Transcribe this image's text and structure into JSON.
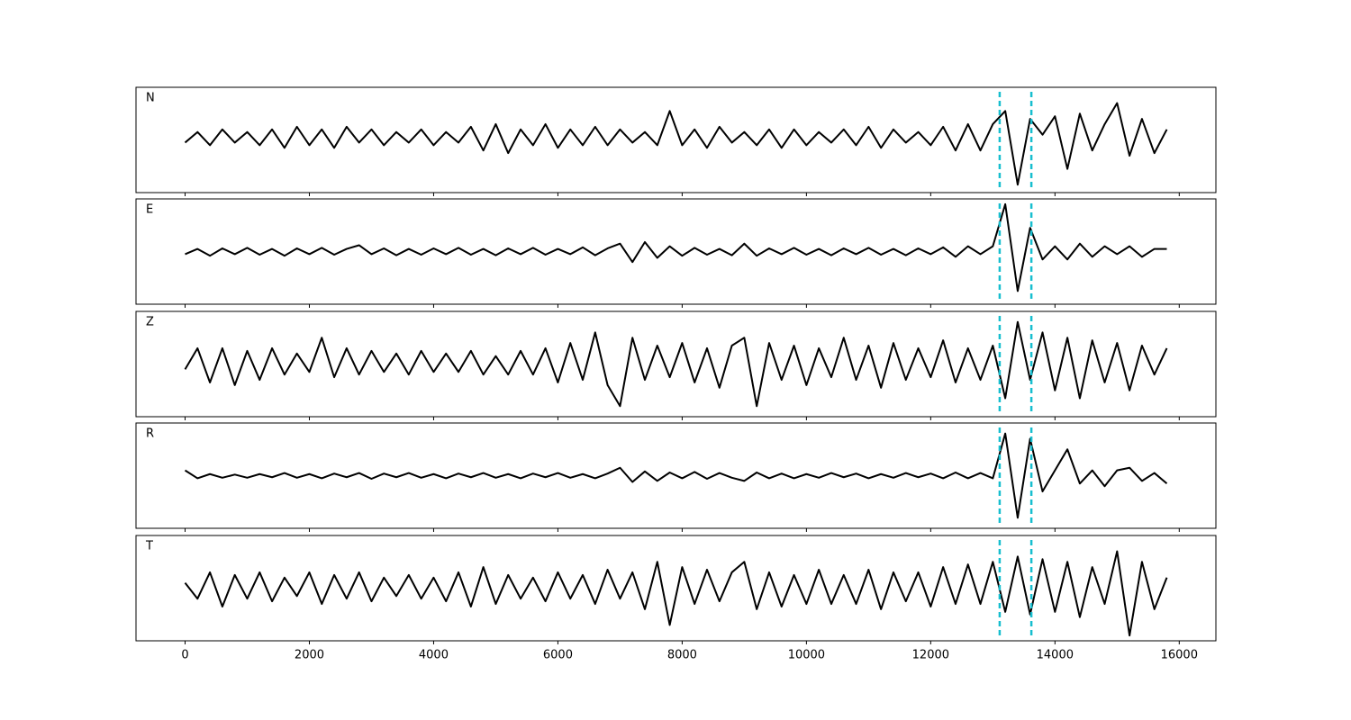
{
  "chart_data": {
    "type": "line",
    "x": [
      0,
      200,
      400,
      600,
      800,
      1000,
      1200,
      1400,
      1600,
      1800,
      2000,
      2200,
      2400,
      2600,
      2800,
      3000,
      3200,
      3400,
      3600,
      3800,
      4000,
      4200,
      4400,
      4600,
      4800,
      5000,
      5200,
      5400,
      5600,
      5800,
      6000,
      6200,
      6400,
      6600,
      6800,
      7000,
      7200,
      7400,
      7600,
      7800,
      8000,
      8200,
      8400,
      8600,
      8800,
      9000,
      9200,
      9400,
      9600,
      9800,
      10000,
      10200,
      10400,
      10600,
      10800,
      11000,
      11200,
      11400,
      11600,
      11800,
      12000,
      12200,
      12400,
      12600,
      12800,
      13000,
      13200,
      13400,
      13600,
      13800,
      14000,
      14200,
      14400,
      14600,
      14800,
      15000,
      15200,
      15400,
      15600,
      15800
    ],
    "series": [
      {
        "name": "N",
        "color": "#000000",
        "values": [
          -0.05,
          0.15,
          -0.1,
          0.2,
          -0.05,
          0.15,
          -0.1,
          0.2,
          -0.15,
          0.25,
          -0.1,
          0.2,
          -0.15,
          0.25,
          -0.05,
          0.2,
          -0.1,
          0.15,
          -0.05,
          0.2,
          -0.1,
          0.15,
          -0.05,
          0.25,
          -0.2,
          0.3,
          -0.25,
          0.2,
          -0.1,
          0.3,
          -0.15,
          0.2,
          -0.1,
          0.25,
          -0.1,
          0.2,
          -0.05,
          0.15,
          -0.1,
          0.55,
          -0.1,
          0.2,
          -0.15,
          0.25,
          -0.05,
          0.15,
          -0.1,
          0.2,
          -0.15,
          0.2,
          -0.1,
          0.15,
          -0.05,
          0.2,
          -0.1,
          0.25,
          -0.15,
          0.2,
          -0.05,
          0.15,
          -0.1,
          0.25,
          -0.2,
          0.3,
          -0.2,
          0.3,
          0.55,
          -0.85,
          0.4,
          0.1,
          0.45,
          -0.55,
          0.5,
          -0.2,
          0.3,
          0.7,
          -0.3,
          0.4,
          -0.25,
          0.2
        ]
      },
      {
        "name": "E",
        "color": "#000000",
        "values": [
          -0.05,
          0.05,
          -0.08,
          0.06,
          -0.05,
          0.07,
          -0.06,
          0.05,
          -0.08,
          0.06,
          -0.05,
          0.07,
          -0.06,
          0.05,
          0.12,
          -0.05,
          0.06,
          -0.07,
          0.05,
          -0.06,
          0.06,
          -0.05,
          0.07,
          -0.06,
          0.05,
          -0.07,
          0.06,
          -0.05,
          0.07,
          -0.06,
          0.05,
          -0.05,
          0.08,
          -0.07,
          0.06,
          0.15,
          -0.2,
          0.18,
          -0.12,
          0.1,
          -0.08,
          0.07,
          -0.06,
          0.05,
          -0.07,
          0.15,
          -0.08,
          0.06,
          -0.05,
          0.07,
          -0.06,
          0.05,
          -0.07,
          0.06,
          -0.05,
          0.07,
          -0.06,
          0.05,
          -0.07,
          0.06,
          -0.05,
          0.08,
          -0.1,
          0.1,
          -0.05,
          0.1,
          0.9,
          -0.75,
          0.45,
          -0.15,
          0.1,
          -0.15,
          0.15,
          -0.1,
          0.1,
          -0.05,
          0.1,
          -0.1,
          0.05,
          0.05
        ]
      },
      {
        "name": "Z",
        "color": "#000000",
        "values": [
          -0.1,
          0.3,
          -0.35,
          0.3,
          -0.4,
          0.25,
          -0.3,
          0.3,
          -0.2,
          0.2,
          -0.15,
          0.5,
          -0.25,
          0.3,
          -0.2,
          0.25,
          -0.15,
          0.2,
          -0.2,
          0.25,
          -0.15,
          0.2,
          -0.15,
          0.25,
          -0.2,
          0.15,
          -0.2,
          0.25,
          -0.2,
          0.3,
          -0.35,
          0.4,
          -0.3,
          0.6,
          -0.4,
          -0.8,
          0.5,
          -0.3,
          0.35,
          -0.25,
          0.4,
          -0.35,
          0.3,
          -0.45,
          0.35,
          0.5,
          -0.8,
          0.4,
          -0.3,
          0.35,
          -0.4,
          0.3,
          -0.25,
          0.5,
          -0.3,
          0.35,
          -0.45,
          0.4,
          -0.3,
          0.3,
          -0.25,
          0.45,
          -0.35,
          0.3,
          -0.3,
          0.35,
          -0.65,
          0.8,
          -0.3,
          0.6,
          -0.5,
          0.5,
          -0.65,
          0.45,
          -0.35,
          0.4,
          -0.5,
          0.35,
          -0.2,
          0.3
        ]
      },
      {
        "name": "R",
        "color": "#000000",
        "values": [
          0.1,
          -0.05,
          0.03,
          -0.04,
          0.02,
          -0.04,
          0.03,
          -0.03,
          0.05,
          -0.04,
          0.03,
          -0.05,
          0.04,
          -0.03,
          0.05,
          -0.06,
          0.04,
          -0.03,
          0.05,
          -0.04,
          0.03,
          -0.05,
          0.04,
          -0.03,
          0.05,
          -0.04,
          0.03,
          -0.05,
          0.04,
          -0.03,
          0.05,
          -0.04,
          0.03,
          -0.05,
          0.04,
          0.15,
          -0.12,
          0.08,
          -0.1,
          0.06,
          -0.05,
          0.07,
          -0.06,
          0.05,
          -0.04,
          -0.1,
          0.06,
          -0.05,
          0.04,
          -0.05,
          0.03,
          -0.04,
          0.05,
          -0.03,
          0.04,
          -0.05,
          0.03,
          -0.04,
          0.05,
          -0.03,
          0.04,
          -0.05,
          0.06,
          -0.05,
          0.05,
          -0.05,
          0.8,
          -0.8,
          0.7,
          -0.3,
          0.1,
          0.5,
          -0.15,
          0.1,
          -0.2,
          0.1,
          0.15,
          -0.1,
          0.05,
          -0.15
        ]
      },
      {
        "name": "T",
        "color": "#000000",
        "values": [
          0.1,
          -0.2,
          0.3,
          -0.35,
          0.25,
          -0.2,
          0.3,
          -0.25,
          0.2,
          -0.15,
          0.3,
          -0.3,
          0.25,
          -0.2,
          0.3,
          -0.25,
          0.2,
          -0.15,
          0.25,
          -0.2,
          0.2,
          -0.25,
          0.3,
          -0.35,
          0.4,
          -0.3,
          0.25,
          -0.2,
          0.2,
          -0.25,
          0.3,
          -0.2,
          0.25,
          -0.3,
          0.35,
          -0.2,
          0.3,
          -0.4,
          0.5,
          -0.7,
          0.4,
          -0.3,
          0.35,
          -0.25,
          0.3,
          0.5,
          -0.4,
          0.3,
          -0.35,
          0.25,
          -0.3,
          0.35,
          -0.3,
          0.25,
          -0.3,
          0.35,
          -0.4,
          0.3,
          -0.25,
          0.3,
          -0.35,
          0.4,
          -0.3,
          0.45,
          -0.3,
          0.5,
          -0.45,
          0.6,
          -0.5,
          0.55,
          -0.45,
          0.5,
          -0.55,
          0.4,
          -0.3,
          0.7,
          -0.9,
          0.5,
          -0.4,
          0.2
        ]
      }
    ],
    "ylim": [
      -1,
      1
    ],
    "xlim": [
      -790,
      16590
    ],
    "xticks": [
      0,
      2000,
      4000,
      6000,
      8000,
      10000,
      12000,
      14000,
      16000
    ],
    "vlines": [
      13110,
      13620
    ],
    "vline_color": "#17becf"
  }
}
